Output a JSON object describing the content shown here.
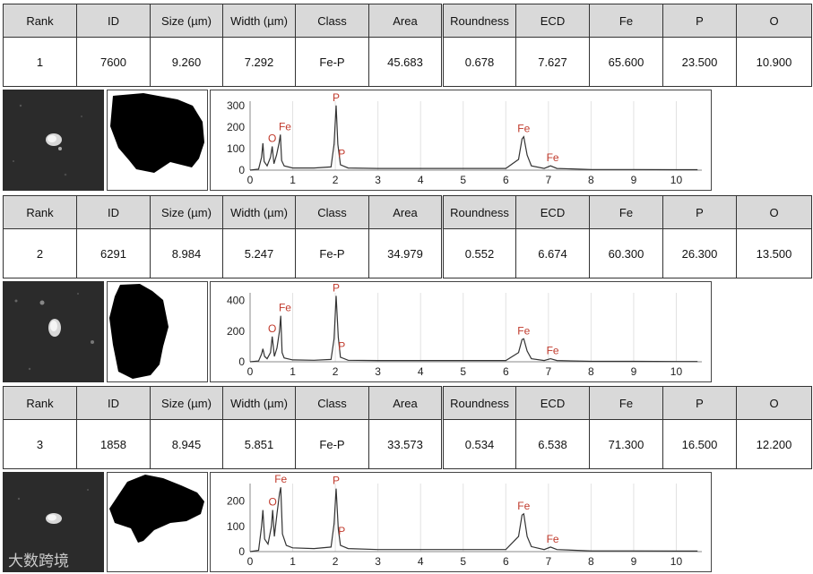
{
  "columns": [
    "Rank",
    "ID",
    "Size (µm)",
    "Width (µm)",
    "Class",
    "Area",
    "Roundness",
    "ECD",
    "Fe",
    "P",
    "O"
  ],
  "records": [
    {
      "values": [
        "1",
        "7600",
        "9.260",
        "7.292",
        "Fe-P",
        "45.683",
        "0.678",
        "7.627",
        "65.600",
        "23.500",
        "10.900"
      ]
    },
    {
      "values": [
        "2",
        "6291",
        "8.984",
        "5.247",
        "Fe-P",
        "34.979",
        "0.552",
        "6.674",
        "60.300",
        "26.300",
        "13.500"
      ]
    },
    {
      "values": [
        "3",
        "1858",
        "8.945",
        "5.851",
        "Fe-P",
        "33.573",
        "0.534",
        "6.538",
        "71.300",
        "16.500",
        "12.200"
      ]
    }
  ],
  "watermark": "大数跨境",
  "colors": {
    "peak_label": "#c0392b",
    "header_bg": "#d9d9d9",
    "micro_bg": "#2b2b2b",
    "line": "#333333"
  },
  "chart_data": [
    {
      "type": "line",
      "x": [
        0,
        0.2,
        0.27,
        0.3,
        0.33,
        0.4,
        0.48,
        0.52,
        0.56,
        0.62,
        0.68,
        0.71,
        0.74,
        0.8,
        1,
        1.5,
        1.9,
        1.97,
        2.02,
        2.06,
        2.12,
        2.3,
        3,
        4,
        5,
        6,
        6.3,
        6.38,
        6.42,
        6.5,
        6.6,
        6.9,
        7.05,
        7.2,
        8,
        9,
        10,
        10.5
      ],
      "y": [
        0,
        5,
        60,
        125,
        40,
        20,
        60,
        110,
        30,
        70,
        125,
        165,
        45,
        20,
        10,
        10,
        15,
        120,
        300,
        120,
        25,
        10,
        8,
        8,
        8,
        8,
        50,
        145,
        155,
        70,
        20,
        8,
        20,
        8,
        3,
        3,
        2,
        2
      ],
      "xlim": [
        0,
        10.6
      ],
      "ylim": [
        0,
        320
      ],
      "xticks": [
        0,
        1,
        2,
        3,
        4,
        5,
        6,
        7,
        8,
        9,
        10
      ],
      "yticks": [
        0,
        100,
        200,
        300
      ],
      "peaks": [
        {
          "label": "O",
          "x": 0.52,
          "y": 110
        },
        {
          "label": "Fe",
          "x": 0.82,
          "y": 165
        },
        {
          "label": "P",
          "x": 2.02,
          "y": 300
        },
        {
          "label": "P",
          "x": 2.15,
          "y": 40
        },
        {
          "label": "Fe",
          "x": 6.42,
          "y": 155
        },
        {
          "label": "Fe",
          "x": 7.1,
          "y": 20
        }
      ]
    },
    {
      "type": "line",
      "x": [
        0,
        0.2,
        0.27,
        0.3,
        0.34,
        0.4,
        0.48,
        0.52,
        0.57,
        0.63,
        0.69,
        0.72,
        0.75,
        0.8,
        1,
        1.5,
        1.9,
        1.97,
        2.02,
        2.07,
        2.12,
        2.3,
        3,
        4,
        5,
        6,
        6.3,
        6.38,
        6.42,
        6.5,
        6.6,
        6.9,
        7.05,
        7.2,
        8,
        9,
        10,
        10.5
      ],
      "y": [
        0,
        5,
        50,
        85,
        35,
        20,
        60,
        165,
        35,
        90,
        200,
        300,
        60,
        25,
        12,
        10,
        15,
        150,
        430,
        160,
        30,
        10,
        8,
        8,
        8,
        8,
        60,
        145,
        150,
        70,
        20,
        8,
        20,
        8,
        3,
        3,
        2,
        2
      ],
      "xlim": [
        0,
        10.6
      ],
      "ylim": [
        0,
        450
      ],
      "xticks": [
        0,
        1,
        2,
        3,
        4,
        5,
        6,
        7,
        8,
        9,
        10
      ],
      "yticks": [
        0,
        200,
        400
      ],
      "peaks": [
        {
          "label": "O",
          "x": 0.52,
          "y": 165
        },
        {
          "label": "Fe",
          "x": 0.82,
          "y": 300
        },
        {
          "label": "P",
          "x": 2.02,
          "y": 430
        },
        {
          "label": "P",
          "x": 2.15,
          "y": 50
        },
        {
          "label": "Fe",
          "x": 6.42,
          "y": 150
        },
        {
          "label": "Fe",
          "x": 7.1,
          "y": 20
        }
      ]
    },
    {
      "type": "line",
      "x": [
        0,
        0.2,
        0.27,
        0.3,
        0.34,
        0.42,
        0.5,
        0.53,
        0.57,
        0.63,
        0.69,
        0.72,
        0.76,
        0.85,
        1,
        1.5,
        1.9,
        1.97,
        2.02,
        2.07,
        2.12,
        2.3,
        3,
        4,
        5,
        6,
        6.3,
        6.38,
        6.42,
        6.5,
        6.6,
        6.9,
        7.05,
        7.2,
        8,
        9,
        10,
        10.5
      ],
      "y": [
        0,
        5,
        100,
        165,
        50,
        30,
        100,
        165,
        60,
        150,
        230,
        255,
        70,
        25,
        15,
        12,
        18,
        110,
        250,
        90,
        25,
        12,
        8,
        8,
        8,
        8,
        60,
        145,
        150,
        60,
        20,
        8,
        18,
        8,
        3,
        3,
        2,
        2
      ],
      "xlim": [
        0,
        10.6
      ],
      "ylim": [
        0,
        270
      ],
      "xticks": [
        0,
        1,
        2,
        3,
        4,
        5,
        6,
        7,
        8,
        9,
        10
      ],
      "yticks": [
        0,
        100,
        200
      ],
      "peaks": [
        {
          "label": "O",
          "x": 0.53,
          "y": 165
        },
        {
          "label": "Fe",
          "x": 0.72,
          "y": 255
        },
        {
          "label": "P",
          "x": 2.02,
          "y": 250
        },
        {
          "label": "P",
          "x": 2.15,
          "y": 50
        },
        {
          "label": "Fe",
          "x": 6.42,
          "y": 150
        },
        {
          "label": "Fe",
          "x": 7.1,
          "y": 18
        }
      ]
    }
  ]
}
